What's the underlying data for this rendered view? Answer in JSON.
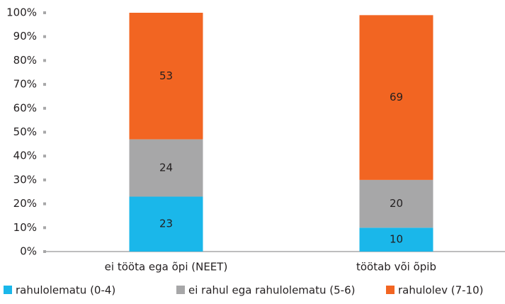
{
  "chart_data": {
    "type": "stacked_bar",
    "categories": [
      "ei tööta ega õpi (NEET)",
      "töötab või õpib"
    ],
    "series": [
      {
        "name": "rahulolematu (0-4)",
        "color": "#1ab7ea",
        "values": [
          23,
          10
        ]
      },
      {
        "name": "ei rahul ega rahulolematu (5-6)",
        "color": "#a7a7a8",
        "values": [
          24,
          20
        ]
      },
      {
        "name": "rahulolev (7-10)",
        "color": "#f26522",
        "values": [
          53,
          69
        ]
      }
    ],
    "ylim": [
      0,
      100
    ],
    "yticks": [
      {
        "value": 0,
        "label": "0%"
      },
      {
        "value": 10,
        "label": "10%"
      },
      {
        "value": 20,
        "label": "20%"
      },
      {
        "value": 30,
        "label": "30%"
      },
      {
        "value": 40,
        "label": "40%"
      },
      {
        "value": 50,
        "label": "50%"
      },
      {
        "value": 60,
        "label": "60%"
      },
      {
        "value": 70,
        "label": "70%"
      },
      {
        "value": 80,
        "label": "80%"
      },
      {
        "value": 90,
        "label": "90%"
      },
      {
        "value": 100,
        "label": "100%"
      }
    ],
    "legend": "bottom"
  }
}
